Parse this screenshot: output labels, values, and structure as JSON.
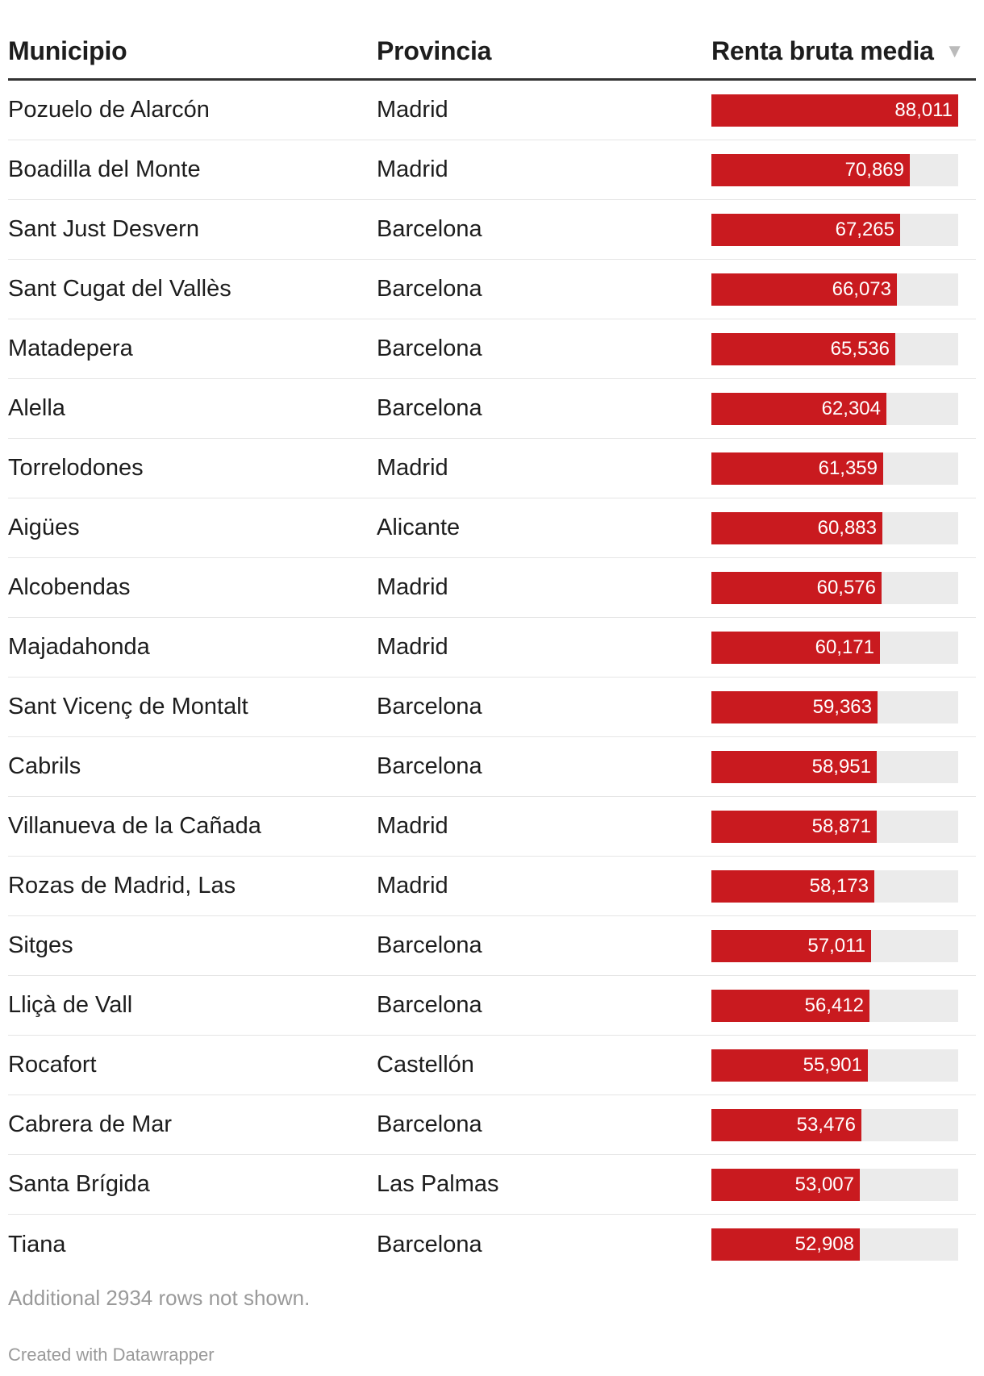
{
  "table": {
    "columns": {
      "municipio": "Municipio",
      "provincia": "Provincia",
      "renta": "Renta bruta media"
    },
    "sort_icon": "sort-descending-icon",
    "bar_color": "#c91a1f",
    "bar_track_color": "#ebebeb",
    "bar_max": 88011,
    "rows": [
      {
        "municipio": "Pozuelo de Alarcón",
        "provincia": "Madrid",
        "renta": 88011,
        "renta_label": "88,011"
      },
      {
        "municipio": "Boadilla del Monte",
        "provincia": "Madrid",
        "renta": 70869,
        "renta_label": "70,869"
      },
      {
        "municipio": "Sant Just Desvern",
        "provincia": "Barcelona",
        "renta": 67265,
        "renta_label": "67,265"
      },
      {
        "municipio": "Sant Cugat del Vallès",
        "provincia": "Barcelona",
        "renta": 66073,
        "renta_label": "66,073"
      },
      {
        "municipio": "Matadepera",
        "provincia": "Barcelona",
        "renta": 65536,
        "renta_label": "65,536"
      },
      {
        "municipio": "Alella",
        "provincia": "Barcelona",
        "renta": 62304,
        "renta_label": "62,304"
      },
      {
        "municipio": "Torrelodones",
        "provincia": "Madrid",
        "renta": 61359,
        "renta_label": "61,359"
      },
      {
        "municipio": "Aigües",
        "provincia": "Alicante",
        "renta": 60883,
        "renta_label": "60,883"
      },
      {
        "municipio": "Alcobendas",
        "provincia": "Madrid",
        "renta": 60576,
        "renta_label": "60,576"
      },
      {
        "municipio": "Majadahonda",
        "provincia": "Madrid",
        "renta": 60171,
        "renta_label": "60,171"
      },
      {
        "municipio": "Sant Vicenç de Montalt",
        "provincia": "Barcelona",
        "renta": 59363,
        "renta_label": "59,363"
      },
      {
        "municipio": "Cabrils",
        "provincia": "Barcelona",
        "renta": 58951,
        "renta_label": "58,951"
      },
      {
        "municipio": "Villanueva de la Cañada",
        "provincia": "Madrid",
        "renta": 58871,
        "renta_label": "58,871"
      },
      {
        "municipio": "Rozas de Madrid, Las",
        "provincia": "Madrid",
        "renta": 58173,
        "renta_label": "58,173"
      },
      {
        "municipio": "Sitges",
        "provincia": "Barcelona",
        "renta": 57011,
        "renta_label": "57,011"
      },
      {
        "municipio": "Lliçà de Vall",
        "provincia": "Barcelona",
        "renta": 56412,
        "renta_label": "56,412"
      },
      {
        "municipio": "Rocafort",
        "provincia": "Castellón",
        "renta": 55901,
        "renta_label": "55,901"
      },
      {
        "municipio": "Cabrera de Mar",
        "provincia": "Barcelona",
        "renta": 53476,
        "renta_label": "53,476"
      },
      {
        "municipio": "Santa Brígida",
        "provincia": "Las Palmas",
        "renta": 53007,
        "renta_label": "53,007"
      },
      {
        "municipio": "Tiana",
        "provincia": "Barcelona",
        "renta": 52908,
        "renta_label": "52,908"
      }
    ]
  },
  "notes": "Additional 2934 rows not shown.",
  "credit": "Created with Datawrapper"
}
